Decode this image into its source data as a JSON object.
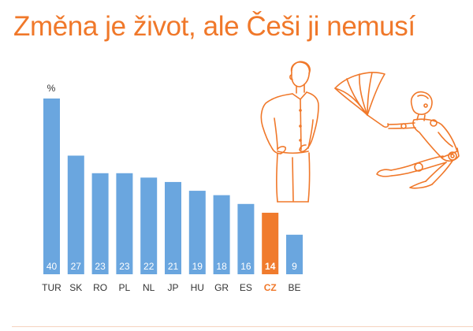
{
  "title": "Změna je život, ale Češi ji nemusí",
  "colors": {
    "accent": "#f0782a",
    "bar": "#6aa6df",
    "highlight_bar": "#f07b2d",
    "label": "#333333"
  },
  "chart_data": {
    "type": "bar",
    "unit_label": "%",
    "categories": [
      "TUR",
      "SK",
      "RO",
      "PL",
      "NL",
      "JP",
      "HU",
      "GR",
      "ES",
      "CZ",
      "BE"
    ],
    "values": [
      40,
      27,
      23,
      23,
      22,
      21,
      19,
      18,
      16,
      14,
      9
    ],
    "highlight": "CZ",
    "ylim": [
      0,
      40
    ],
    "grid": false,
    "legend": "none"
  },
  "illustrations": [
    "man-with-hands-on-hips-drawing",
    "robot-with-umbrella-drawing"
  ]
}
